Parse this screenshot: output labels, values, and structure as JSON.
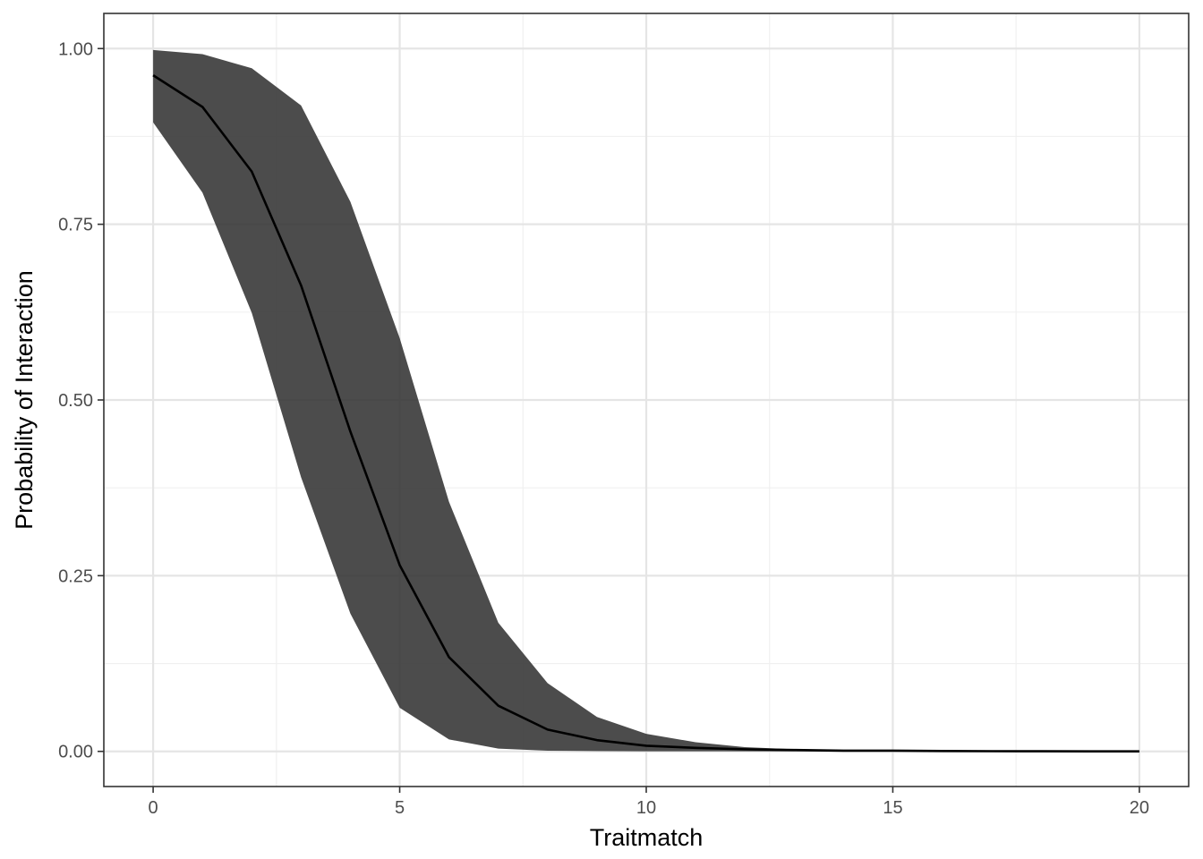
{
  "chart_data": {
    "type": "area",
    "title": "",
    "xlabel": "Traitmatch",
    "ylabel": "Probability of Interaction",
    "xlim": [
      -1.0,
      21.0
    ],
    "ylim": [
      -0.05,
      1.05
    ],
    "x_ticks": [
      0,
      5,
      10,
      15,
      20
    ],
    "x_tick_labels": [
      "0",
      "5",
      "10",
      "15",
      "20"
    ],
    "y_ticks": [
      0,
      0.25,
      0.5,
      0.75,
      1.0
    ],
    "y_tick_labels": [
      "0.00",
      "0.25",
      "0.50",
      "0.75",
      "1.00"
    ],
    "x_minor": [
      2.5,
      7.5,
      12.5,
      17.5
    ],
    "y_minor": [
      0.125,
      0.375,
      0.625,
      0.875
    ],
    "grid": true,
    "legend": "none",
    "series": [
      {
        "x": [
          0,
          1,
          2,
          3,
          4,
          5,
          6,
          7,
          8,
          9,
          10,
          11,
          12,
          13,
          14,
          15,
          16,
          17,
          18,
          19,
          20
        ],
        "mean": [
          0.962,
          0.917,
          0.825,
          0.663,
          0.455,
          0.265,
          0.134,
          0.065,
          0.031,
          0.016,
          0.008,
          0.005,
          0.003,
          0.002,
          0.001,
          0.001,
          0.0005,
          0.0003,
          0.0002,
          0.0001,
          0.0001
        ],
        "lower": [
          0.895,
          0.795,
          0.624,
          0.39,
          0.196,
          0.062,
          0.017,
          0.004,
          0.001,
          0.0005,
          0.0002,
          0.0001,
          0.0001,
          0.0,
          0.0,
          0.0,
          0.0,
          0.0,
          0.0,
          0.0,
          0.0
        ],
        "upper": [
          0.998,
          0.992,
          0.972,
          0.919,
          0.782,
          0.588,
          0.355,
          0.183,
          0.097,
          0.049,
          0.025,
          0.013,
          0.006,
          0.003,
          0.002,
          0.001,
          0.0008,
          0.0005,
          0.0003,
          0.0002,
          0.0001
        ]
      }
    ],
    "colors": {
      "ribbon": "#333333",
      "ribbon_opacity": 0.88,
      "line": "#000000",
      "grid_major": "#e5e5e5",
      "grid_minor": "#f0f0f0",
      "panel_border": "#333333",
      "tick": "#333333"
    }
  }
}
